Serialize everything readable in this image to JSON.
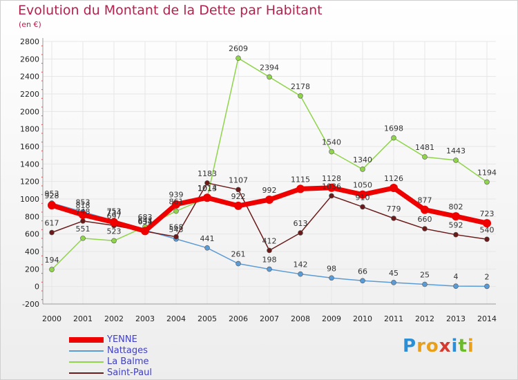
{
  "title": "Evolution du Montant de la Dette par Habitant",
  "subtitle": "(en €)",
  "logo_text": "Proxiti",
  "colors": {
    "title": "#b5204e",
    "YENNE": "#ee0000",
    "Nattages": "#5b9bd5",
    "La Balme": "#8fd44a",
    "Saint-Paul": "#6b1a1a",
    "legend_text": "#4040c0",
    "grid": "#e6e6e6"
  },
  "chart_data": {
    "type": "line",
    "title": "Evolution du Montant de la Dette par Habitant",
    "ylabel": "(en €)",
    "xlabel": "",
    "ylim": [
      -200,
      2800
    ],
    "yticks": [
      -200,
      0,
      200,
      400,
      600,
      800,
      1000,
      1200,
      1400,
      1600,
      1800,
      2000,
      2200,
      2400,
      2600,
      2800
    ],
    "x": [
      2000,
      2001,
      2002,
      2003,
      2004,
      2005,
      2006,
      2007,
      2008,
      2009,
      2010,
      2011,
      2012,
      2013,
      2014
    ],
    "grid": true,
    "legend": "bottom-left",
    "series": [
      {
        "name": "YENNE",
        "values": [
          928,
          818,
          734,
          634,
          939,
          1014,
          922,
          992,
          1115,
          1128,
          1050,
          1126,
          877,
          802,
          723
        ],
        "labels": [
          "928",
          "818",
          "734",
          "634",
          "939",
          "1014",
          "922",
          "992",
          "1115",
          "1128",
          "1050",
          "1126",
          "877",
          "802",
          "723"
        ]
      },
      {
        "name": "Nattages",
        "values": [
          953,
          853,
          753,
          643,
          543,
          441,
          261,
          198,
          142,
          98,
          66,
          45,
          25,
          4,
          2
        ],
        "labels": [
          "953",
          "853",
          "753",
          "643",
          "543",
          "441",
          "261",
          "198",
          "142",
          "98",
          "66",
          "45",
          "25",
          "4",
          "2"
        ]
      },
      {
        "name": "La Balme",
        "values": [
          194,
          551,
          523,
          683,
          861,
          1013,
          2609,
          2394,
          2178,
          1540,
          1340,
          1698,
          1481,
          1443,
          1194
        ],
        "labels": [
          "194",
          "551",
          "523",
          "683",
          "861",
          "1013",
          "2609",
          "2394",
          "2178",
          "1540",
          "1340",
          "1698",
          "1481",
          "1443",
          "1194"
        ]
      },
      {
        "name": "Saint-Paul",
        "values": [
          617,
          748,
          697,
          631,
          568,
          1183,
          1107,
          412,
          613,
          1036,
          910,
          779,
          660,
          592,
          540
        ],
        "labels": [
          "617",
          "748",
          "697",
          "631",
          "568",
          "1183",
          "1107",
          "412",
          "613",
          "1036",
          "910",
          "779",
          "660",
          "592",
          "540"
        ]
      }
    ]
  }
}
